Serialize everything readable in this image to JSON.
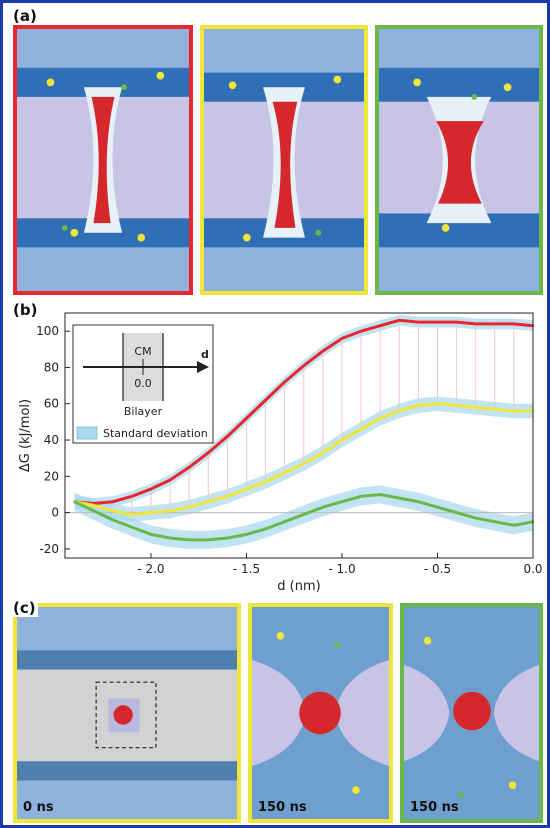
{
  "panels": {
    "a": {
      "label": "(a)"
    },
    "b": {
      "label": "(b)"
    },
    "c": {
      "label": "(c)",
      "timestamps": [
        "0 ns",
        "150 ns",
        "150 ns"
      ]
    }
  },
  "colors": {
    "red": "#e8262f",
    "yellow": "#f0e63a",
    "green": "#6ab84a",
    "band": "#a8d8ec",
    "frame": "#1a3aa8"
  },
  "inset": {
    "cm_label": "CM",
    "zero_label": "0.0",
    "axis_label": "d",
    "bilayer_label": "Bilayer",
    "legend_label": "Standard deviation"
  },
  "chart_data": {
    "type": "line",
    "xlabel": "d (nm)",
    "ylabel": "ΔG (kJ/mol)",
    "xlim": [
      -2.45,
      0.0
    ],
    "ylim": [
      -25,
      110
    ],
    "xticks": [
      -2.0,
      -1.5,
      -1.0,
      -0.5,
      0.0
    ],
    "xtick_labels": [
      "- 2.0",
      "- 1.5",
      "- 1.0",
      "- 0.5",
      "0.0"
    ],
    "yticks": [
      -20,
      0,
      20,
      40,
      60,
      80,
      100
    ],
    "ytick_labels": [
      "-20",
      "0",
      "20",
      "40",
      "60",
      "80",
      "100"
    ],
    "grid": false,
    "legend": "top-left",
    "series": [
      {
        "color": "red",
        "std": 3,
        "x": [
          -2.4,
          -2.3,
          -2.2,
          -2.1,
          -2.0,
          -1.9,
          -1.8,
          -1.7,
          -1.6,
          -1.5,
          -1.4,
          -1.3,
          -1.2,
          -1.1,
          -1.0,
          -0.9,
          -0.8,
          -0.7,
          -0.6,
          -0.5,
          -0.4,
          -0.3,
          -0.2,
          -0.1,
          0.0
        ],
        "y": [
          6,
          5,
          6,
          9,
          13,
          18,
          25,
          33,
          42,
          52,
          62,
          72,
          81,
          89,
          96,
          100,
          103,
          106,
          105,
          105,
          105,
          104,
          104,
          104,
          103
        ]
      },
      {
        "color": "yellow",
        "std": 4,
        "x": [
          -2.4,
          -2.3,
          -2.2,
          -2.1,
          -2.0,
          -1.9,
          -1.8,
          -1.7,
          -1.6,
          -1.5,
          -1.4,
          -1.3,
          -1.2,
          -1.1,
          -1.0,
          -0.9,
          -0.8,
          -0.7,
          -0.6,
          -0.5,
          -0.4,
          -0.3,
          -0.2,
          -0.1,
          0.0
        ],
        "y": [
          6,
          4,
          1,
          -1,
          0,
          1,
          3,
          6,
          9,
          13,
          17,
          22,
          27,
          33,
          40,
          46,
          52,
          56,
          59,
          60,
          59,
          58,
          57,
          56,
          56
        ]
      },
      {
        "color": "green",
        "std": 5,
        "x": [
          -2.4,
          -2.3,
          -2.2,
          -2.1,
          -2.0,
          -1.9,
          -1.8,
          -1.7,
          -1.6,
          -1.5,
          -1.4,
          -1.3,
          -1.2,
          -1.1,
          -1.0,
          -0.9,
          -0.8,
          -0.7,
          -0.6,
          -0.5,
          -0.4,
          -0.3,
          -0.2,
          -0.1,
          0.0
        ],
        "y": [
          6,
          1,
          -4,
          -8,
          -12,
          -14,
          -15,
          -15,
          -14,
          -12,
          -9,
          -5,
          -1,
          3,
          6,
          9,
          10,
          8,
          6,
          3,
          0,
          -3,
          -5,
          -7,
          -5
        ]
      }
    ]
  }
}
